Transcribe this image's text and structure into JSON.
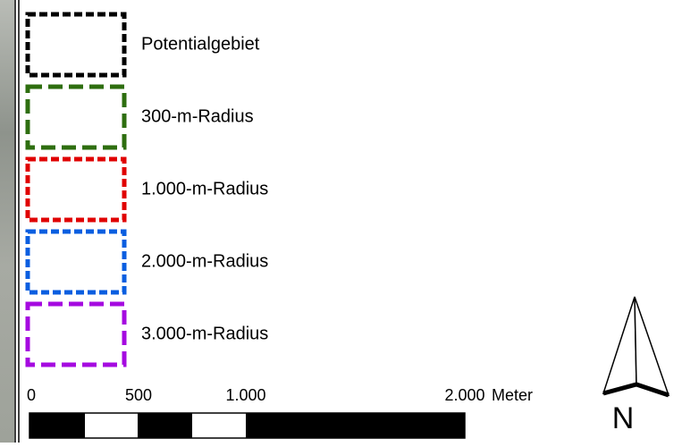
{
  "legend": {
    "items": [
      {
        "label": "Potentialgebiet",
        "color": "#000000"
      },
      {
        "label": "300-m-Radius",
        "color": "#2e6e0f"
      },
      {
        "label": "1.000-m-Radius",
        "color": "#e00000"
      },
      {
        "label": "2.000-m-Radius",
        "color": "#0a5ee0"
      },
      {
        "label": "3.000-m-Radius",
        "color": "#a50ae0"
      }
    ]
  },
  "scale_bar": {
    "labels": [
      "0",
      "500",
      "1.000",
      "2.000"
    ],
    "unit": "Meter"
  },
  "north_arrow": {
    "label": "N"
  }
}
